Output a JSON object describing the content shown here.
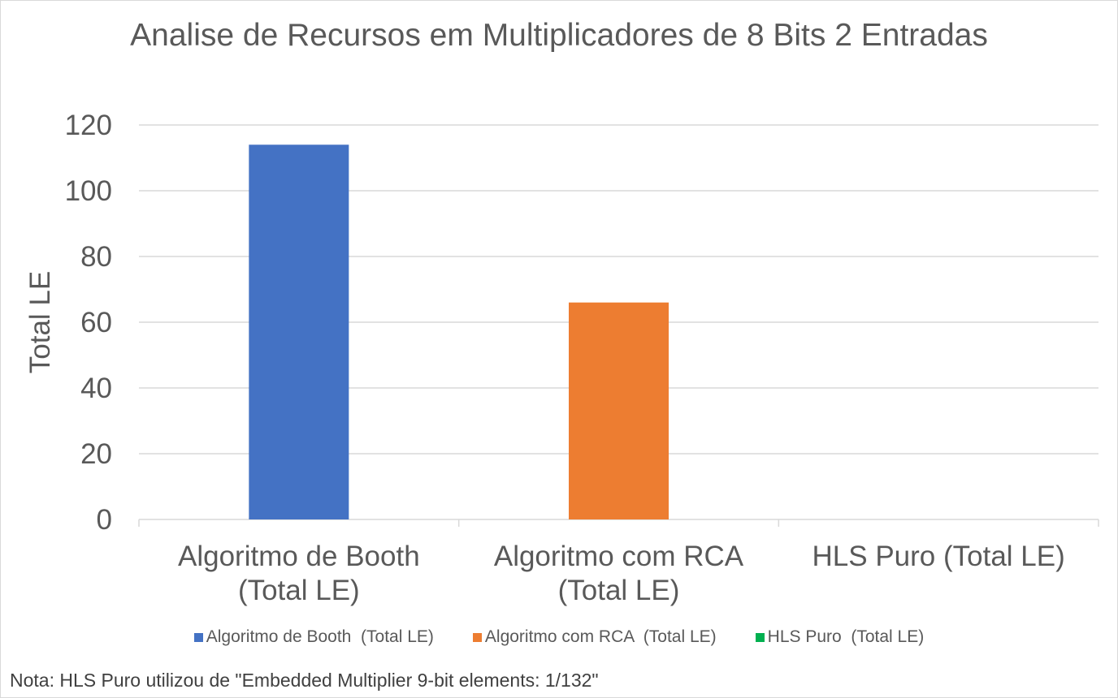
{
  "chart_data": {
    "type": "bar",
    "title": "Analise de Recursos em Multiplicadores de 8 Bits 2 Entradas",
    "ylabel": "Total LE",
    "xlabel": "",
    "ylim": [
      0,
      120
    ],
    "yticks": [
      0,
      20,
      40,
      60,
      80,
      100,
      120
    ],
    "grid": true,
    "legend_position": "bottom",
    "categories": [
      [
        "Algoritmo de Booth",
        "(Total LE)"
      ],
      [
        "Algoritmo com RCA",
        "(Total LE)"
      ],
      [
        "HLS Puro  (Total LE)"
      ]
    ],
    "series": [
      {
        "name": "Algoritmo de Booth  (Total LE)",
        "color": "#4472c4",
        "values": [
          114,
          null,
          null
        ]
      },
      {
        "name": "Algoritmo com RCA  (Total LE)",
        "color": "#ed7d31",
        "values": [
          null,
          66,
          null
        ]
      },
      {
        "name": "HLS Puro  (Total LE)",
        "color": "#00b050",
        "values": [
          null,
          null,
          0
        ]
      }
    ],
    "note": "Nota: HLS Puro utilizou de \"Embedded Multiplier 9-bit elements: 1/132\""
  },
  "colors": {
    "gridline": "#d9d9d9",
    "axis": "#d9d9d9",
    "text": "#595959"
  }
}
